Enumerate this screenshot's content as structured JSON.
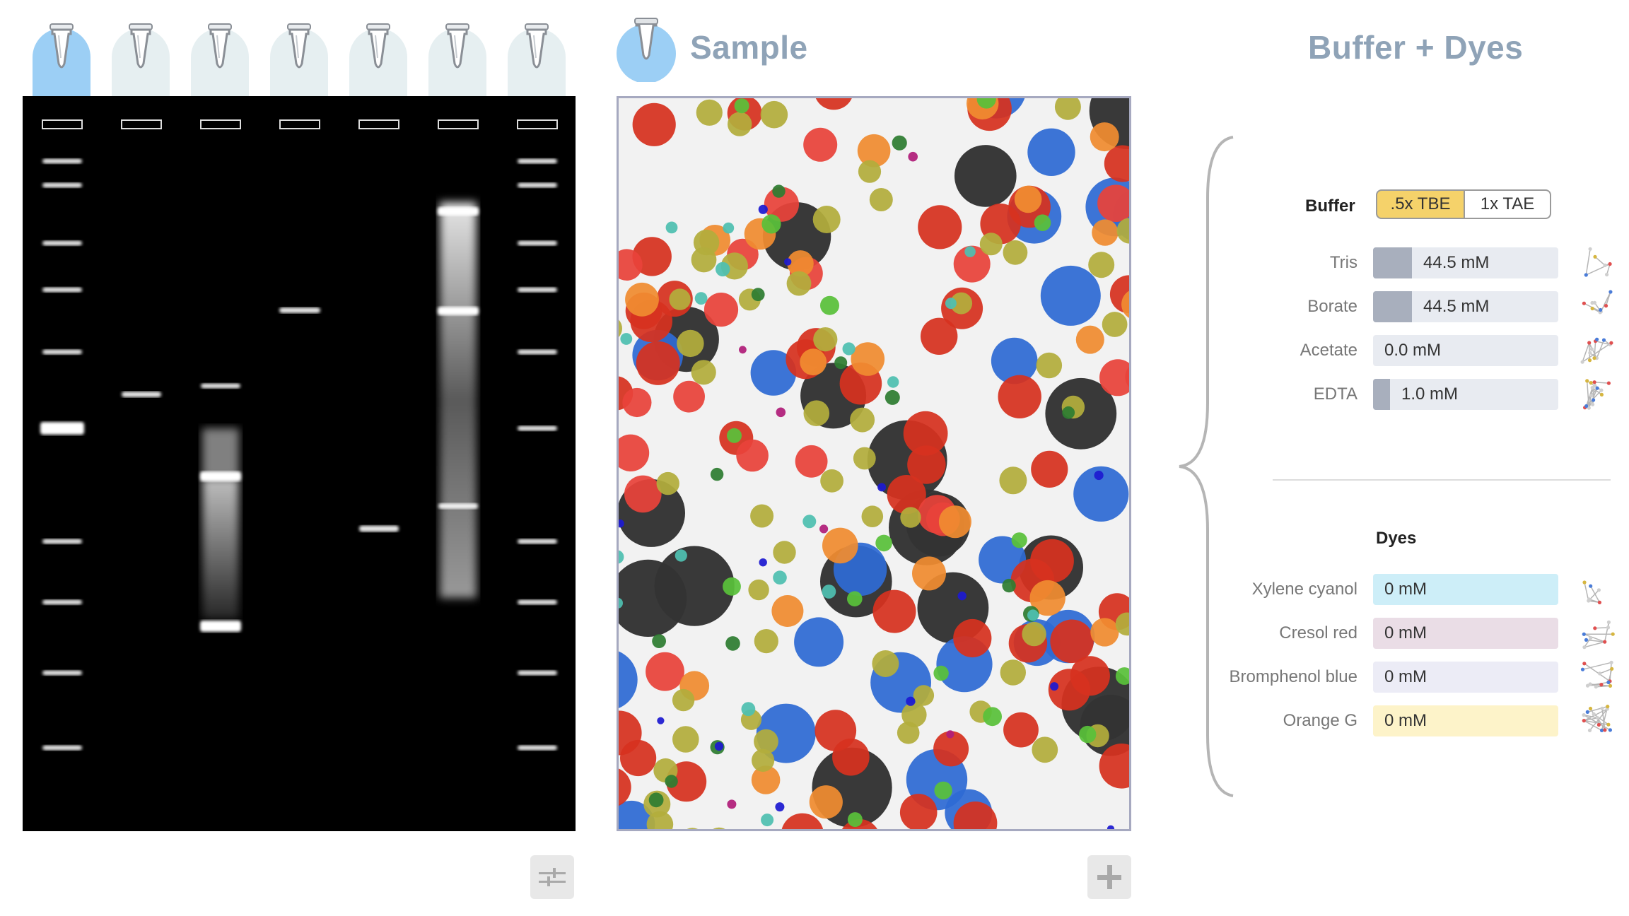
{
  "sample": {
    "title": "Sample"
  },
  "buffer_dyes": {
    "title": "Buffer + Dyes",
    "buffer": {
      "label": "Buffer",
      "options": [
        ".5x TBE",
        "1x TAE"
      ],
      "selected": ".5x TBE",
      "components": [
        {
          "name": "Tris",
          "value": "44.5 mM",
          "level": 0.21,
          "color": "#a8afbd",
          "bg": "#e8ebf1"
        },
        {
          "name": "Borate",
          "value": "44.5 mM",
          "level": 0.21,
          "color": "#a8afbd",
          "bg": "#e8ebf1"
        },
        {
          "name": "Acetate",
          "value": "0.0 mM",
          "level": 0.0,
          "color": "#a8afbd",
          "bg": "#e8ebf1"
        },
        {
          "name": "EDTA",
          "value": "1.0 mM",
          "level": 0.09,
          "color": "#a8afbd",
          "bg": "#e8ebf1"
        }
      ]
    },
    "dyes": {
      "label": "Dyes",
      "items": [
        {
          "name": "Xylene cyanol",
          "value": "0 mM",
          "bg": "#cdeef8"
        },
        {
          "name": "Cresol red",
          "value": "0 mM",
          "bg": "#eadde6"
        },
        {
          "name": "Bromphenol blue",
          "value": "0 mM",
          "bg": "#ececf6"
        },
        {
          "name": "Orange G",
          "value": "0 mM",
          "bg": "#fdf3c9"
        }
      ]
    }
  },
  "lanes": {
    "count": 7,
    "selected_index": 0
  },
  "colors": {
    "gel_background": "#000000",
    "tab_selected": "#9ccff5",
    "tab_default": "#e6eff1",
    "title": "#8fa3b7",
    "selected_buffer": "#f5d26a"
  },
  "icons": {
    "lane_tab": "tube-icon",
    "gel_settings": "sliders-icon",
    "sample_add": "plus-icon",
    "bracket": "curly-brace-icon"
  }
}
